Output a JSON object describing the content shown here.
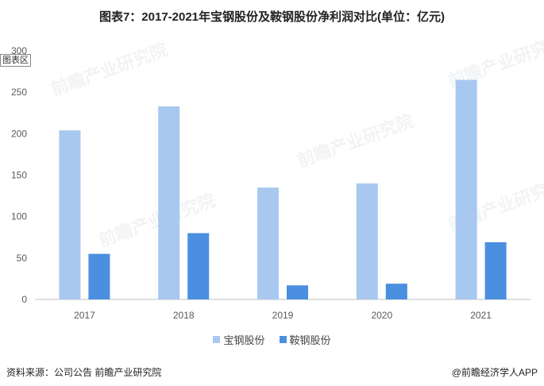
{
  "title": "图表7：2017-2021年宝钢股份及鞍钢股份净利润对比(单位：亿元)",
  "chart_area_label": "图表区",
  "watermark_text": "前瞻产业研究院",
  "colors": {
    "series1": "#a9c8f0",
    "series2": "#4a8fe0",
    "axis": "#bfbfbf",
    "text": "#595959"
  },
  "chart_data": {
    "type": "bar",
    "categories": [
      "2017",
      "2018",
      "2019",
      "2020",
      "2021"
    ],
    "series": [
      {
        "name": "宝钢股份",
        "values": [
          204,
          233,
          135,
          140,
          265
        ]
      },
      {
        "name": "鞍钢股份",
        "values": [
          55,
          80,
          17,
          19,
          69
        ]
      }
    ],
    "ylim": [
      0,
      300
    ],
    "yticks": [
      0,
      50,
      100,
      150,
      200,
      250,
      300
    ],
    "grid": false,
    "legend": "bottom"
  },
  "footer": {
    "source": "资料来源：公司公告 前瞻产业研究院",
    "brand": "@前瞻经济学人APP"
  }
}
